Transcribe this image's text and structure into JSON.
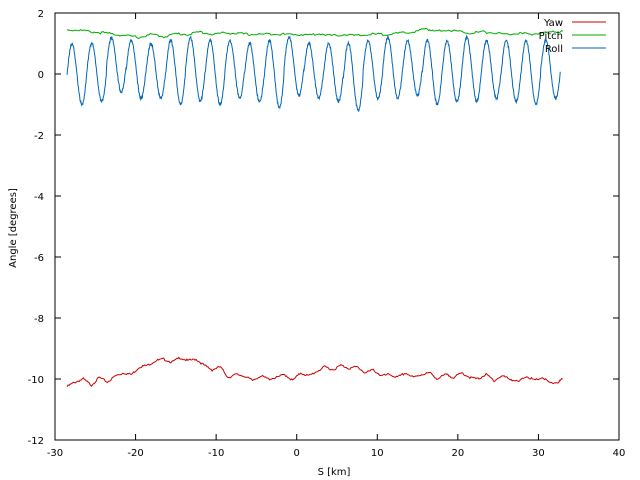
{
  "chart_data": {
    "type": "line",
    "xlabel": "S [km]",
    "ylabel": "Angle [degrees]",
    "xlim": [
      -30,
      40
    ],
    "ylim": [
      -12,
      2
    ],
    "xticks": [
      -30,
      -20,
      -10,
      0,
      10,
      20,
      30,
      40
    ],
    "yticks": [
      -12,
      -10,
      -8,
      -6,
      -4,
      -2,
      0,
      2
    ],
    "grid": false,
    "legend_position": "top-right",
    "series": [
      {
        "name": "Yaw",
        "color": "#cc0000",
        "x": [
          -28.5,
          -27.5,
          -26.5,
          -25.5,
          -24.5,
          -23.5,
          -22.5,
          -21.5,
          -20.5,
          -19.5,
          -18.5,
          -17.5,
          -16.5,
          -15.5,
          -14.5,
          -13.5,
          -12.5,
          -11.5,
          -10.5,
          -9.5,
          -8.5,
          -7.5,
          -6.5,
          -5.5,
          -4.5,
          -3.5,
          -2.5,
          -1.5,
          -0.5,
          0.5,
          1.5,
          2.5,
          3.5,
          4.5,
          5.5,
          6.5,
          7.5,
          8.5,
          9.5,
          10.5,
          11.5,
          12.5,
          13.5,
          14.5,
          15.5,
          16.5,
          17.5,
          18.5,
          19.5,
          20.5,
          21.5,
          22.5,
          23.5,
          24.5,
          25.5,
          26.5,
          27.5,
          28.5,
          29.5,
          30.5,
          31.5,
          32.5,
          33.0
        ],
        "y": [
          -10.25,
          -10.1,
          -10.0,
          -10.2,
          -9.95,
          -10.1,
          -9.9,
          -9.8,
          -9.85,
          -9.6,
          -9.55,
          -9.4,
          -9.35,
          -9.45,
          -9.3,
          -9.4,
          -9.35,
          -9.55,
          -9.7,
          -9.6,
          -9.95,
          -9.85,
          -9.9,
          -10.05,
          -9.9,
          -10.0,
          -9.95,
          -9.85,
          -10.05,
          -9.8,
          -9.9,
          -9.75,
          -9.6,
          -9.7,
          -9.55,
          -9.65,
          -9.6,
          -9.8,
          -9.7,
          -9.9,
          -9.85,
          -9.95,
          -9.8,
          -9.95,
          -9.85,
          -9.8,
          -10.0,
          -9.85,
          -9.95,
          -9.8,
          -9.95,
          -10.0,
          -9.85,
          -10.05,
          -9.9,
          -10.0,
          -10.1,
          -9.9,
          -10.05,
          -9.95,
          -10.15,
          -10.1,
          -10.0
        ]
      },
      {
        "name": "Pitch",
        "color": "#00aa00",
        "x": [
          -28.5,
          -27,
          -25.5,
          -24,
          -22.5,
          -21,
          -19.5,
          -18,
          -16.5,
          -15,
          -13.5,
          -12,
          -10.5,
          -9,
          -7.5,
          -6,
          -4.5,
          -3,
          -1.5,
          0,
          1.5,
          3,
          4.5,
          6,
          7.5,
          9,
          10.5,
          12,
          13.5,
          15,
          16,
          17,
          18.5,
          20,
          21.5,
          23,
          24.5,
          26,
          27.5,
          29,
          30.5,
          32,
          33.0
        ],
        "y": [
          1.45,
          1.44,
          1.38,
          1.35,
          1.3,
          1.25,
          1.2,
          1.3,
          1.22,
          1.32,
          1.3,
          1.38,
          1.3,
          1.35,
          1.33,
          1.3,
          1.3,
          1.32,
          1.3,
          1.3,
          1.28,
          1.32,
          1.25,
          1.3,
          1.25,
          1.3,
          1.3,
          1.32,
          1.35,
          1.4,
          1.5,
          1.4,
          1.45,
          1.4,
          1.35,
          1.38,
          1.35,
          1.3,
          1.33,
          1.3,
          1.35,
          1.38,
          1.4
        ]
      },
      {
        "name": "Roll",
        "color": "#0066bb",
        "x_start": -28.5,
        "x_end": 32.8,
        "cycle_km": 2.45,
        "peaks": [
          1.0,
          1.0,
          1.2,
          1.1,
          1.0,
          1.1,
          1.2,
          1.1,
          1.1,
          1.0,
          1.1,
          1.2,
          1.0,
          1.0,
          1.0,
          1.1,
          1.2,
          1.1,
          1.1,
          1.1,
          1.2,
          1.1,
          1.1,
          1.1,
          1.1,
          1.0
        ],
        "troughs": [
          -1.0,
          -0.9,
          -0.6,
          -0.8,
          -0.8,
          -1.0,
          -0.9,
          -1.0,
          -0.8,
          -0.9,
          -1.1,
          -0.7,
          -0.8,
          -0.9,
          -1.2,
          -0.8,
          -0.8,
          -0.7,
          -1.0,
          -0.9,
          -0.9,
          -0.8,
          -0.9,
          -1.0,
          -0.8,
          -0.8
        ]
      }
    ]
  }
}
